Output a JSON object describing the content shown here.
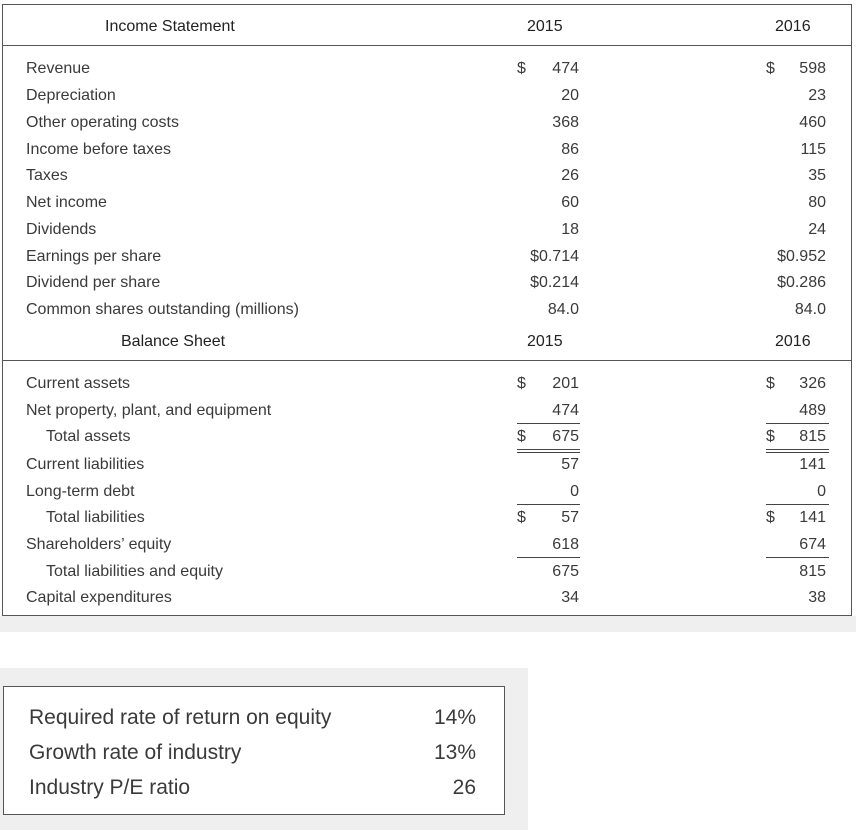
{
  "income_statement": {
    "title": "Income Statement",
    "year1": "2015",
    "year2": "2016",
    "rows": [
      {
        "label": "Revenue",
        "v1": "474",
        "v1_dollar": "$",
        "v2": "598",
        "v2_dollar": "$"
      },
      {
        "label": "Depreciation",
        "v1": "20",
        "v2": "23"
      },
      {
        "label": "Other operating costs",
        "v1": "368",
        "v2": "460"
      },
      {
        "label": "Income before taxes",
        "v1": "86",
        "v2": "115"
      },
      {
        "label": "Taxes",
        "v1": "26",
        "v2": "35"
      },
      {
        "label": "Net income",
        "v1": "60",
        "v2": "80"
      },
      {
        "label": "Dividends",
        "v1": "18",
        "v2": "24"
      },
      {
        "label": "Earnings per share",
        "v1": "$0.714",
        "v2": "$0.952"
      },
      {
        "label": "Dividend per share",
        "v1": "$0.214",
        "v2": "$0.286"
      },
      {
        "label": "Common shares outstanding (millions)",
        "v1": "84.0",
        "v2": "84.0"
      }
    ]
  },
  "balance_sheet": {
    "title": "Balance Sheet",
    "year1": "2015",
    "year2": "2016",
    "rows": [
      {
        "label": "Current assets",
        "v1": "201",
        "v1_dollar": "$",
        "v2": "326",
        "v2_dollar": "$"
      },
      {
        "label": "Net property, plant, and equipment",
        "v1": "474",
        "v2": "489"
      },
      {
        "label": "Total assets",
        "v1": "675",
        "v1_dollar": "$",
        "v2": "815",
        "v2_dollar": "$"
      },
      {
        "label": "Current liabilities",
        "v1": "57",
        "v2": "141"
      },
      {
        "label": "Long-term debt",
        "v1": "0",
        "v2": "0"
      },
      {
        "label": "Total liabilities",
        "v1": "57",
        "v1_dollar": "$",
        "v2": "141",
        "v2_dollar": "$"
      },
      {
        "label": "Shareholders’ equity",
        "v1": "618",
        "v2": "674"
      },
      {
        "label": "Total liabilities and equity",
        "v1": "675",
        "v2": "815"
      },
      {
        "label": "Capital expenditures",
        "v1": "34",
        "v2": "38"
      }
    ]
  },
  "parameters": {
    "rows": [
      {
        "label": "Required rate of return on equity",
        "value": "14%"
      },
      {
        "label": "Growth rate of industry",
        "value": "13%"
      },
      {
        "label": "Industry P/E ratio",
        "value": "26"
      }
    ]
  }
}
